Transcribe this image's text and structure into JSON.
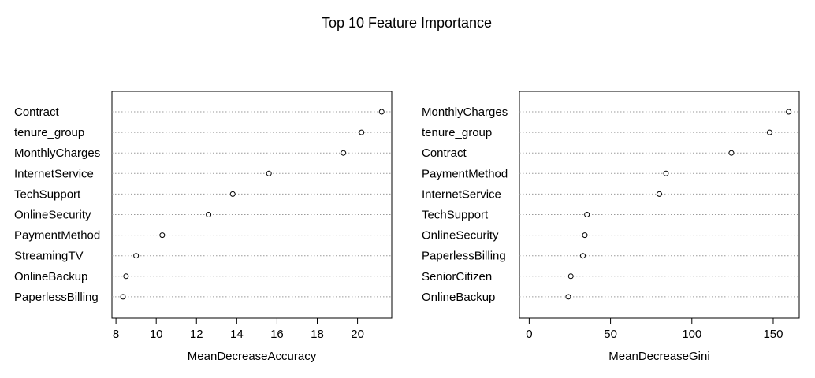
{
  "chart_data": [
    {
      "type": "scatter",
      "title": "Top 10 Feature Importance",
      "xlabel": "MeanDecreaseAccuracy",
      "categories": [
        "Contract",
        "tenure_group",
        "MonthlyCharges",
        "InternetService",
        "TechSupport",
        "OnlineSecurity",
        "PaymentMethod",
        "StreamingTV",
        "OnlineBackup",
        "PaperlessBilling"
      ],
      "values": [
        21.2,
        20.2,
        19.3,
        15.6,
        13.8,
        12.6,
        10.3,
        9.0,
        8.5,
        8.35
      ],
      "xlim": [
        7.8,
        21.7
      ],
      "xticks": [
        8,
        10,
        12,
        14,
        16,
        18,
        20
      ],
      "grid": "dotted horizontal"
    },
    {
      "type": "scatter",
      "xlabel": "MeanDecreaseGini",
      "categories": [
        "MonthlyCharges",
        "tenure_group",
        "Contract",
        "PaymentMethod",
        "InternetService",
        "TechSupport",
        "OnlineSecurity",
        "PaperlessBilling",
        "SeniorCitizen",
        "OnlineBackup"
      ],
      "values": [
        159.5,
        147.8,
        124.3,
        84.1,
        80.0,
        35.5,
        34.2,
        33.0,
        25.6,
        24.0
      ],
      "xlim": [
        -6,
        166
      ],
      "xticks": [
        0,
        50,
        100,
        150
      ],
      "grid": "dotted horizontal"
    }
  ]
}
